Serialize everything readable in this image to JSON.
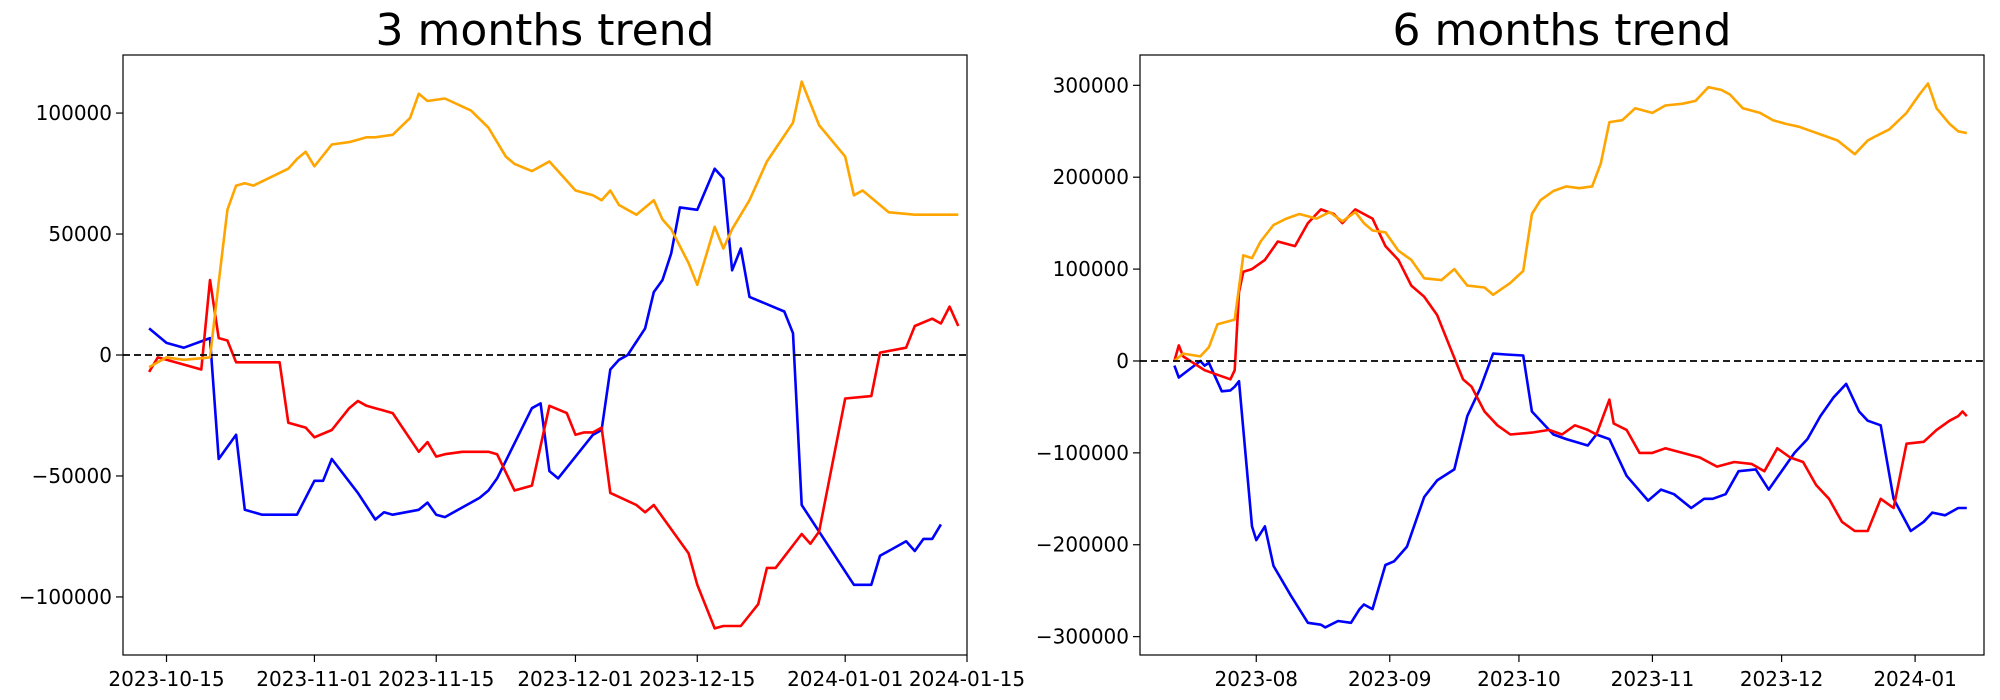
{
  "chart_data": [
    {
      "type": "line",
      "title": "3 months trend",
      "xlabel": "",
      "ylabel": "",
      "xlim": [
        "2023-10-10",
        "2024-01-15"
      ],
      "ylim": [
        -124000,
        124000
      ],
      "x_ticks": [
        "2023-10-15",
        "2023-11-01",
        "2023-11-15",
        "2023-12-01",
        "2023-12-15",
        "2024-01-01",
        "2024-01-15"
      ],
      "y_ticks": [
        100000,
        50000,
        0,
        -50000,
        -100000
      ],
      "y_tick_labels": [
        "100000",
        "50000",
        "0",
        "−50000",
        "−100000"
      ],
      "reference_line": {
        "y": 0,
        "style": "dashed",
        "color": "#000000"
      },
      "grid": false,
      "series": [
        {
          "color": "#0000ff",
          "x": [
            "2023-10-13",
            "2023-10-15",
            "2023-10-17",
            "2023-10-20",
            "2023-10-21",
            "2023-10-23",
            "2023-10-24",
            "2023-10-26",
            "2023-10-27",
            "2023-10-30",
            "2023-11-01",
            "2023-11-02",
            "2023-11-03",
            "2023-11-06",
            "2023-11-08",
            "2023-11-09",
            "2023-11-10",
            "2023-11-13",
            "2023-11-14",
            "2023-11-15",
            "2023-11-16",
            "2023-11-19",
            "2023-11-20",
            "2023-11-21",
            "2023-11-22",
            "2023-11-26",
            "2023-11-27",
            "2023-11-28",
            "2023-11-29",
            "2023-12-03",
            "2023-12-04",
            "2023-12-05",
            "2023-12-06",
            "2023-12-07",
            "2023-12-09",
            "2023-12-10",
            "2023-12-11",
            "2023-12-12",
            "2023-12-13",
            "2023-12-15",
            "2023-12-17",
            "2023-12-18",
            "2023-12-19",
            "2023-12-20",
            "2023-12-21",
            "2023-12-25",
            "2023-12-26",
            "2023-12-27",
            "2024-01-02",
            "2024-01-03",
            "2024-01-04",
            "2024-01-05",
            "2024-01-08",
            "2024-01-09",
            "2024-01-10",
            "2024-01-11",
            "2024-01-12"
          ],
          "values": [
            11000,
            5000,
            3000,
            7000,
            -43000,
            -33000,
            -64000,
            -66000,
            -66000,
            -66000,
            -52000,
            -52000,
            -43000,
            -57000,
            -68000,
            -65000,
            -66000,
            -64000,
            -61000,
            -66000,
            -67000,
            -61000,
            -59000,
            -56000,
            -51000,
            -22000,
            -20000,
            -48000,
            -51000,
            -33000,
            -31000,
            -6000,
            -2000,
            0,
            11000,
            26000,
            31000,
            42000,
            61000,
            60000,
            77000,
            73000,
            35000,
            44000,
            24000,
            18000,
            9000,
            -62000,
            -95000,
            -95000,
            -95000,
            -83000,
            -77000,
            -81000,
            -76000,
            -76000,
            -70000
          ]
        },
        {
          "color": "#ff0000",
          "x": [
            "2023-10-13",
            "2023-10-14",
            "2023-10-15",
            "2023-10-19",
            "2023-10-20",
            "2023-10-21",
            "2023-10-22",
            "2023-10-23",
            "2023-10-24",
            "2023-10-28",
            "2023-10-29",
            "2023-10-31",
            "2023-11-01",
            "2023-11-03",
            "2023-11-05",
            "2023-11-06",
            "2023-11-07",
            "2023-11-08",
            "2023-11-09",
            "2023-11-10",
            "2023-11-13",
            "2023-11-14",
            "2023-11-15",
            "2023-11-16",
            "2023-11-18",
            "2023-11-21",
            "2023-11-22",
            "2023-11-24",
            "2023-11-26",
            "2023-11-28",
            "2023-11-30",
            "2023-12-01",
            "2023-12-02",
            "2023-12-03",
            "2023-12-04",
            "2023-12-05",
            "2023-12-08",
            "2023-12-09",
            "2023-12-10",
            "2023-12-14",
            "2023-12-15",
            "2023-12-17",
            "2023-12-18",
            "2023-12-20",
            "2023-12-22",
            "2023-12-23",
            "2023-12-24",
            "2023-12-27",
            "2023-12-28",
            "2023-12-29",
            "2024-01-01",
            "2024-01-04",
            "2024-01-05",
            "2024-01-08",
            "2024-01-09",
            "2024-01-11",
            "2024-01-12",
            "2024-01-13",
            "2024-01-14"
          ],
          "values": [
            -7000,
            -1000,
            -2000,
            -6000,
            31000,
            7000,
            6000,
            -3000,
            -3000,
            -3000,
            -28000,
            -30000,
            -34000,
            -31000,
            -22000,
            -19000,
            -21000,
            -22000,
            -23000,
            -24000,
            -40000,
            -36000,
            -42000,
            -41000,
            -40000,
            -40000,
            -41000,
            -56000,
            -54000,
            -21000,
            -24000,
            -33000,
            -32000,
            -32000,
            -30000,
            -57000,
            -62000,
            -65000,
            -62000,
            -82000,
            -95000,
            -113000,
            -112000,
            -112000,
            -103000,
            -88000,
            -88000,
            -74000,
            -78000,
            -73000,
            -18000,
            -17000,
            1000,
            3000,
            12000,
            15000,
            13000,
            20000,
            12000
          ]
        },
        {
          "color": "#ffa500",
          "x": [
            "2023-10-13",
            "2023-10-15",
            "2023-10-17",
            "2023-10-20",
            "2023-10-21",
            "2023-10-22",
            "2023-10-23",
            "2023-10-24",
            "2023-10-25",
            "2023-10-29",
            "2023-10-30",
            "2023-10-31",
            "2023-11-01",
            "2023-11-03",
            "2023-11-05",
            "2023-11-06",
            "2023-11-07",
            "2023-11-08",
            "2023-11-10",
            "2023-11-12",
            "2023-11-13",
            "2023-11-14",
            "2023-11-16",
            "2023-11-19",
            "2023-11-21",
            "2023-11-23",
            "2023-11-24",
            "2023-11-26",
            "2023-11-28",
            "2023-11-29",
            "2023-12-01",
            "2023-12-03",
            "2023-12-04",
            "2023-12-05",
            "2023-12-06",
            "2023-12-08",
            "2023-12-10",
            "2023-12-11",
            "2023-12-12",
            "2023-12-14",
            "2023-12-15",
            "2023-12-17",
            "2023-12-18",
            "2023-12-19",
            "2023-12-20",
            "2023-12-21",
            "2023-12-23",
            "2023-12-26",
            "2023-12-27",
            "2023-12-29",
            "2024-01-01",
            "2024-01-02",
            "2024-01-03",
            "2024-01-04",
            "2024-01-06",
            "2024-01-09",
            "2024-01-10",
            "2024-01-11",
            "2024-01-12",
            "2024-01-13",
            "2024-01-14"
          ],
          "values": [
            -5000,
            -1000,
            -2000,
            -1000,
            30000,
            60000,
            70000,
            71000,
            70000,
            77000,
            81000,
            84000,
            78000,
            87000,
            88000,
            89000,
            90000,
            90000,
            91000,
            98000,
            108000,
            105000,
            106000,
            101000,
            94000,
            82000,
            79000,
            76000,
            80000,
            76000,
            68000,
            66000,
            64000,
            68000,
            62000,
            58000,
            64000,
            56000,
            52000,
            38000,
            29000,
            53000,
            44000,
            52000,
            58000,
            64000,
            80000,
            96000,
            113000,
            95000,
            82000,
            66000,
            68000,
            65000,
            59000,
            58000,
            58000,
            58000,
            58000,
            58000,
            58000
          ]
        }
      ]
    },
    {
      "type": "line",
      "title": "6 months trend",
      "xlabel": "",
      "ylabel": "",
      "xlim": [
        "2023-07-05",
        "2024-01-17"
      ],
      "ylim": [
        -320000,
        333000
      ],
      "x_ticks": [
        "2023-08",
        "2023-09",
        "2023-10",
        "2023-11",
        "2023-12",
        "2024-01"
      ],
      "y_ticks": [
        300000,
        200000,
        100000,
        0,
        -100000,
        -200000,
        -300000
      ],
      "y_tick_labels": [
        "300000",
        "200000",
        "100000",
        "0",
        "−100000",
        "−200000",
        "−300000"
      ],
      "reference_line": {
        "y": 0,
        "style": "dashed",
        "color": "#000000"
      },
      "grid": false,
      "series": [
        {
          "color": "#0000ff",
          "x": [
            "2023-07-13",
            "2023-07-14",
            "2023-07-19",
            "2023-07-20",
            "2023-07-21",
            "2023-07-24",
            "2023-07-26",
            "2023-07-27",
            "2023-07-28",
            "2023-07-31",
            "2023-08-01",
            "2023-08-03",
            "2023-08-05",
            "2023-08-09",
            "2023-08-13",
            "2023-08-16",
            "2023-08-17",
            "2023-08-20",
            "2023-08-23",
            "2023-08-25",
            "2023-08-26",
            "2023-08-28",
            "2023-08-31",
            "2023-09-02",
            "2023-09-05",
            "2023-09-09",
            "2023-09-12",
            "2023-09-16",
            "2023-09-19",
            "2023-09-22",
            "2023-09-25",
            "2023-09-28",
            "2023-10-02",
            "2023-10-04",
            "2023-10-09",
            "2023-10-12",
            "2023-10-17",
            "2023-10-19",
            "2023-10-22",
            "2023-10-26",
            "2023-10-31",
            "2023-11-01",
            "2023-11-03",
            "2023-11-06",
            "2023-11-10",
            "2023-11-13",
            "2023-11-15",
            "2023-11-18",
            "2023-11-21",
            "2023-11-25",
            "2023-11-28",
            "2023-12-01",
            "2023-12-04",
            "2023-12-07",
            "2023-12-10",
            "2023-12-13",
            "2023-12-16",
            "2023-12-19",
            "2023-12-21",
            "2023-12-24",
            "2023-12-27",
            "2023-12-31",
            "2024-01-03",
            "2024-01-05",
            "2024-01-08",
            "2024-01-11",
            "2024-01-13"
          ],
          "values": [
            -5000,
            -18000,
            0,
            -5000,
            -2000,
            -33000,
            -32000,
            -28000,
            -22000,
            -180000,
            -195000,
            -180000,
            -223000,
            -255000,
            -285000,
            -287000,
            -290000,
            -283000,
            -285000,
            -270000,
            -265000,
            -270000,
            -222000,
            -218000,
            -202000,
            -148000,
            -130000,
            -118000,
            -60000,
            -30000,
            8000,
            7000,
            6000,
            -55000,
            -80000,
            -85000,
            -92000,
            -80000,
            -85000,
            -125000,
            -152000,
            -148000,
            -140000,
            -145000,
            -160000,
            -150000,
            -150000,
            -145000,
            -120000,
            -118000,
            -140000,
            -120000,
            -100000,
            -85000,
            -60000,
            -40000,
            -25000,
            -55000,
            -65000,
            -70000,
            -150000,
            -185000,
            -175000,
            -165000,
            -168000,
            -160000,
            -160000
          ]
        },
        {
          "color": "#ff0000",
          "x": [
            "2023-07-13",
            "2023-07-14",
            "2023-07-15",
            "2023-07-20",
            "2023-07-23",
            "2023-07-26",
            "2023-07-27",
            "2023-07-28",
            "2023-07-29",
            "2023-07-31",
            "2023-08-03",
            "2023-08-06",
            "2023-08-10",
            "2023-08-13",
            "2023-08-16",
            "2023-08-19",
            "2023-08-21",
            "2023-08-24",
            "2023-08-28",
            "2023-08-31",
            "2023-09-03",
            "2023-09-06",
            "2023-09-09",
            "2023-09-12",
            "2023-09-15",
            "2023-09-18",
            "2023-09-20",
            "2023-09-23",
            "2023-09-26",
            "2023-09-29",
            "2023-10-04",
            "2023-10-08",
            "2023-10-11",
            "2023-10-14",
            "2023-10-17",
            "2023-10-19",
            "2023-10-22",
            "2023-10-23",
            "2023-10-26",
            "2023-10-29",
            "2023-11-01",
            "2023-11-04",
            "2023-11-08",
            "2023-11-12",
            "2023-11-16",
            "2023-11-20",
            "2023-11-24",
            "2023-11-27",
            "2023-11-30",
            "2023-12-03",
            "2023-12-06",
            "2023-12-09",
            "2023-12-12",
            "2023-12-15",
            "2023-12-18",
            "2023-12-21",
            "2023-12-24",
            "2023-12-27",
            "2023-12-30",
            "2024-01-03",
            "2024-01-06",
            "2024-01-09",
            "2024-01-11",
            "2024-01-12",
            "2024-01-13"
          ],
          "values": [
            0,
            17000,
            5000,
            -10000,
            -15000,
            -20000,
            -10000,
            75000,
            97000,
            100000,
            110000,
            130000,
            125000,
            150000,
            165000,
            160000,
            150000,
            165000,
            155000,
            125000,
            110000,
            82000,
            70000,
            50000,
            15000,
            -20000,
            -28000,
            -55000,
            -70000,
            -80000,
            -78000,
            -75000,
            -80000,
            -70000,
            -75000,
            -80000,
            -42000,
            -68000,
            -75000,
            -100000,
            -100000,
            -95000,
            -100000,
            -105000,
            -115000,
            -110000,
            -112000,
            -120000,
            -95000,
            -105000,
            -110000,
            -135000,
            -150000,
            -175000,
            -185000,
            -185000,
            -150000,
            -160000,
            -90000,
            -88000,
            -75000,
            -65000,
            -60000,
            -55000,
            -60000
          ]
        },
        {
          "color": "#ffa500",
          "x": [
            "2023-07-13",
            "2023-07-15",
            "2023-07-19",
            "2023-07-21",
            "2023-07-23",
            "2023-07-27",
            "2023-07-29",
            "2023-07-31",
            "2023-08-02",
            "2023-08-05",
            "2023-08-08",
            "2023-08-11",
            "2023-08-15",
            "2023-08-18",
            "2023-08-21",
            "2023-08-24",
            "2023-08-26",
            "2023-08-28",
            "2023-08-31",
            "2023-09-03",
            "2023-09-06",
            "2023-09-09",
            "2023-09-13",
            "2023-09-16",
            "2023-09-19",
            "2023-09-23",
            "2023-09-25",
            "2023-09-29",
            "2023-10-02",
            "2023-10-04",
            "2023-10-06",
            "2023-10-09",
            "2023-10-12",
            "2023-10-15",
            "2023-10-18",
            "2023-10-20",
            "2023-10-22",
            "2023-10-25",
            "2023-10-28",
            "2023-11-01",
            "2023-11-04",
            "2023-11-08",
            "2023-11-11",
            "2023-11-14",
            "2023-11-17",
            "2023-11-19",
            "2023-11-22",
            "2023-11-26",
            "2023-11-29",
            "2023-12-02",
            "2023-12-05",
            "2023-12-08",
            "2023-12-11",
            "2023-12-14",
            "2023-12-18",
            "2023-12-21",
            "2023-12-23",
            "2023-12-26",
            "2023-12-30",
            "2024-01-02",
            "2024-01-04",
            "2024-01-06",
            "2024-01-09",
            "2024-01-11",
            "2024-01-13"
          ],
          "values": [
            0,
            8000,
            5000,
            15000,
            40000,
            45000,
            115000,
            112000,
            130000,
            148000,
            155000,
            160000,
            155000,
            162000,
            152000,
            162000,
            150000,
            142000,
            140000,
            120000,
            110000,
            90000,
            88000,
            100000,
            82000,
            80000,
            72000,
            85000,
            98000,
            160000,
            175000,
            185000,
            190000,
            188000,
            190000,
            215000,
            260000,
            262000,
            275000,
            270000,
            278000,
            280000,
            283000,
            298000,
            295000,
            290000,
            275000,
            270000,
            262000,
            258000,
            255000,
            250000,
            245000,
            240000,
            225000,
            240000,
            245000,
            252000,
            270000,
            290000,
            302000,
            275000,
            258000,
            250000,
            248000
          ]
        }
      ]
    }
  ]
}
